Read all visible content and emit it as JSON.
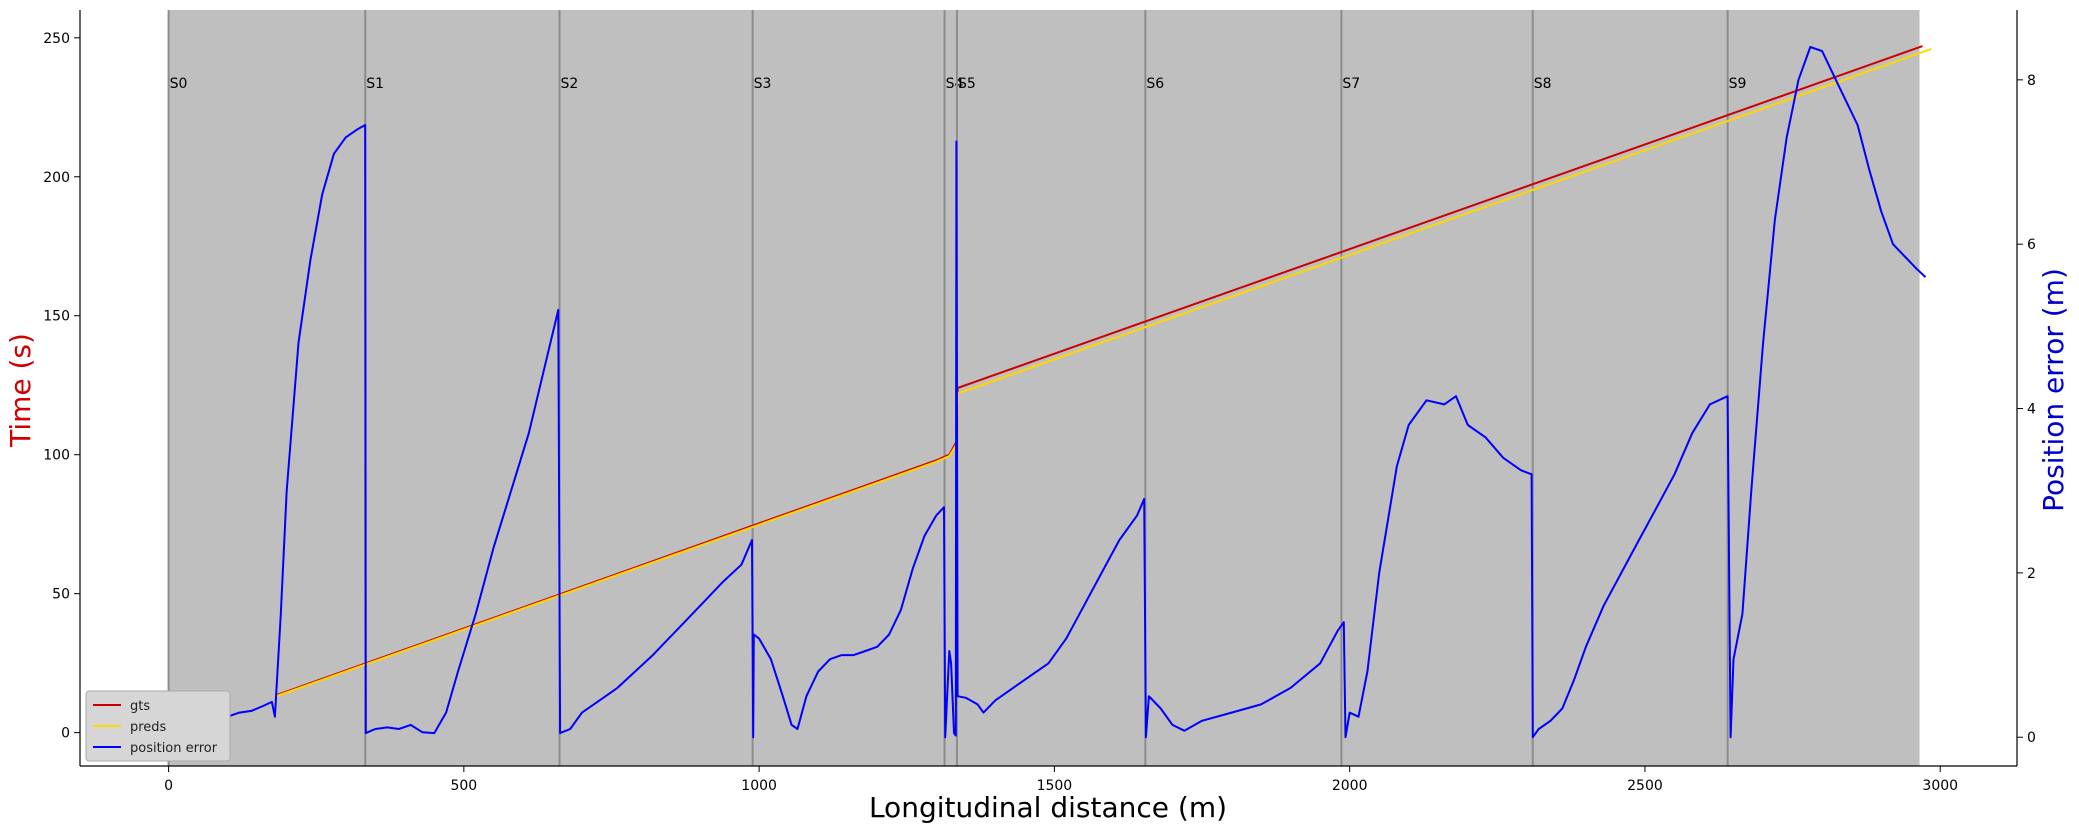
{
  "chart_data": {
    "type": "line",
    "xlabel": "Longitudinal distance (m)",
    "ylabel_left": "Time (s)",
    "ylabel_right": "Position error (m)",
    "xlim": [
      -150,
      3130
    ],
    "ylim_left": [
      -12,
      260
    ],
    "ylim_right": [
      -0.35,
      8.85
    ],
    "x_ticks": [
      0,
      500,
      1000,
      1500,
      2000,
      2500,
      3000
    ],
    "y_left_ticks": [
      0,
      50,
      100,
      150,
      200,
      250
    ],
    "y_right_ticks": [
      0,
      2,
      4,
      6,
      8
    ],
    "shaded_region": [
      0,
      2965
    ],
    "shade_color": "#bfbfbf",
    "segments": [
      {
        "label": "S0",
        "x": 0
      },
      {
        "label": "S1",
        "x": 333
      },
      {
        "label": "S2",
        "x": 662
      },
      {
        "label": "S3",
        "x": 989
      },
      {
        "label": "S4",
        "x": 1314
      },
      {
        "label": "S5",
        "x": 1335
      },
      {
        "label": "S6",
        "x": 1654
      },
      {
        "label": "S7",
        "x": 1986
      },
      {
        "label": "S8",
        "x": 2310
      },
      {
        "label": "S9",
        "x": 2640
      }
    ],
    "series": [
      {
        "name": "gts",
        "axis": "left",
        "color": "#cc0000",
        "points": [
          [
            183,
            13.5
          ],
          [
            1300,
            98
          ],
          [
            1322,
            100
          ],
          [
            1335,
            105
          ],
          [
            1336,
            124
          ],
          [
            2970,
            247
          ]
        ]
      },
      {
        "name": "preds",
        "axis": "left",
        "color": "#ffd700",
        "points": [
          [
            183,
            13.2
          ],
          [
            1300,
            97.5
          ],
          [
            1322,
            99.5
          ],
          [
            1335,
            104
          ],
          [
            1336,
            122
          ],
          [
            2985,
            246
          ]
        ]
      },
      {
        "name": "position error",
        "axis": "right",
        "color": "#0000ff",
        "points": [
          [
            0,
            0.45
          ],
          [
            15,
            0.4
          ],
          [
            30,
            0.3
          ],
          [
            45,
            0.12
          ],
          [
            60,
            0.1
          ],
          [
            80,
            0.15
          ],
          [
            100,
            0.25
          ],
          [
            120,
            0.3
          ],
          [
            140,
            0.32
          ],
          [
            160,
            0.38
          ],
          [
            175,
            0.43
          ],
          [
            180,
            0.25
          ],
          [
            190,
            1.5
          ],
          [
            200,
            3.0
          ],
          [
            220,
            4.8
          ],
          [
            240,
            5.8
          ],
          [
            260,
            6.6
          ],
          [
            280,
            7.1
          ],
          [
            300,
            7.3
          ],
          [
            320,
            7.4
          ],
          [
            333,
            7.45
          ],
          [
            334,
            0.05
          ],
          [
            350,
            0.1
          ],
          [
            370,
            0.12
          ],
          [
            390,
            0.1
          ],
          [
            410,
            0.15
          ],
          [
            430,
            0.06
          ],
          [
            450,
            0.05
          ],
          [
            470,
            0.3
          ],
          [
            490,
            0.8
          ],
          [
            520,
            1.5
          ],
          [
            550,
            2.3
          ],
          [
            580,
            3.0
          ],
          [
            610,
            3.7
          ],
          [
            640,
            4.6
          ],
          [
            660,
            5.2
          ],
          [
            663,
            0.05
          ],
          [
            680,
            0.1
          ],
          [
            700,
            0.3
          ],
          [
            730,
            0.45
          ],
          [
            760,
            0.6
          ],
          [
            790,
            0.8
          ],
          [
            820,
            1.0
          ],
          [
            860,
            1.3
          ],
          [
            900,
            1.6
          ],
          [
            940,
            1.9
          ],
          [
            970,
            2.1
          ],
          [
            988,
            2.4
          ],
          [
            990,
            0.0
          ],
          [
            991,
            1.25
          ],
          [
            1000,
            1.2
          ],
          [
            1020,
            0.95
          ],
          [
            1040,
            0.5
          ],
          [
            1055,
            0.15
          ],
          [
            1065,
            0.1
          ],
          [
            1080,
            0.5
          ],
          [
            1100,
            0.8
          ],
          [
            1120,
            0.95
          ],
          [
            1140,
            1.0
          ],
          [
            1160,
            1.0
          ],
          [
            1180,
            1.05
          ],
          [
            1200,
            1.1
          ],
          [
            1220,
            1.25
          ],
          [
            1240,
            1.55
          ],
          [
            1260,
            2.05
          ],
          [
            1280,
            2.45
          ],
          [
            1300,
            2.7
          ],
          [
            1313,
            2.8
          ],
          [
            1315,
            0.0
          ],
          [
            1322,
            1.05
          ],
          [
            1325,
            0.9
          ],
          [
            1330,
            0.05
          ],
          [
            1333,
            0.02
          ],
          [
            1334,
            7.25
          ],
          [
            1336,
            0.5
          ],
          [
            1350,
            0.48
          ],
          [
            1370,
            0.4
          ],
          [
            1380,
            0.3
          ],
          [
            1400,
            0.45
          ],
          [
            1430,
            0.6
          ],
          [
            1460,
            0.75
          ],
          [
            1490,
            0.9
          ],
          [
            1520,
            1.2
          ],
          [
            1550,
            1.6
          ],
          [
            1580,
            2.0
          ],
          [
            1610,
            2.4
          ],
          [
            1640,
            2.7
          ],
          [
            1652,
            2.9
          ],
          [
            1655,
            0.0
          ],
          [
            1660,
            0.5
          ],
          [
            1680,
            0.35
          ],
          [
            1700,
            0.15
          ],
          [
            1720,
            0.08
          ],
          [
            1750,
            0.2
          ],
          [
            1800,
            0.3
          ],
          [
            1850,
            0.4
          ],
          [
            1900,
            0.6
          ],
          [
            1950,
            0.9
          ],
          [
            1980,
            1.3
          ],
          [
            1990,
            1.4
          ],
          [
            1993,
            0.0
          ],
          [
            2000,
            0.3
          ],
          [
            2015,
            0.25
          ],
          [
            2030,
            0.8
          ],
          [
            2050,
            2.0
          ],
          [
            2080,
            3.3
          ],
          [
            2100,
            3.8
          ],
          [
            2130,
            4.1
          ],
          [
            2160,
            4.05
          ],
          [
            2180,
            4.15
          ],
          [
            2200,
            3.8
          ],
          [
            2230,
            3.65
          ],
          [
            2260,
            3.4
          ],
          [
            2290,
            3.25
          ],
          [
            2308,
            3.2
          ],
          [
            2310,
            0.0
          ],
          [
            2320,
            0.1
          ],
          [
            2340,
            0.2
          ],
          [
            2360,
            0.35
          ],
          [
            2380,
            0.7
          ],
          [
            2400,
            1.1
          ],
          [
            2430,
            1.6
          ],
          [
            2460,
            2.0
          ],
          [
            2490,
            2.4
          ],
          [
            2520,
            2.8
          ],
          [
            2550,
            3.2
          ],
          [
            2580,
            3.7
          ],
          [
            2610,
            4.05
          ],
          [
            2640,
            4.15
          ],
          [
            2645,
            0.0
          ],
          [
            2650,
            0.95
          ],
          [
            2665,
            1.5
          ],
          [
            2680,
            3.0
          ],
          [
            2700,
            4.8
          ],
          [
            2720,
            6.3
          ],
          [
            2740,
            7.3
          ],
          [
            2760,
            8.0
          ],
          [
            2780,
            8.4
          ],
          [
            2800,
            8.35
          ],
          [
            2830,
            7.9
          ],
          [
            2860,
            7.45
          ],
          [
            2880,
            6.9
          ],
          [
            2900,
            6.4
          ],
          [
            2920,
            6.0
          ],
          [
            2940,
            5.85
          ],
          [
            2960,
            5.7
          ],
          [
            2975,
            5.6
          ]
        ]
      }
    ],
    "legend": {
      "position": "lower-left",
      "entries": [
        "gts",
        "preds",
        "position error"
      ]
    }
  }
}
